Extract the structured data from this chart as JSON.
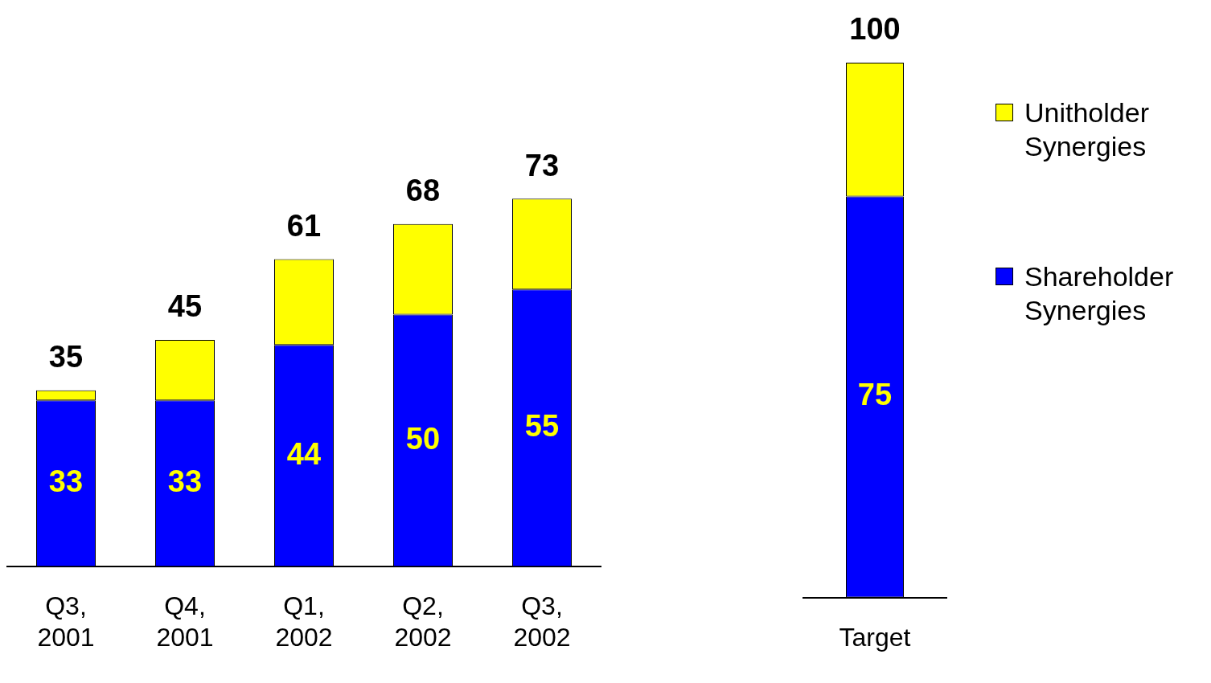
{
  "chart_data": [
    {
      "type": "bar",
      "stacked": true,
      "categories": [
        "Q3, 2001",
        "Q4, 2001",
        "Q1, 2002",
        "Q2, 2002",
        "Q3, 2002"
      ],
      "tick_labels": "x",
      "legend": false,
      "totals": [
        "35",
        "45",
        "61",
        "68",
        "73"
      ],
      "series": [
        {
          "color": "#0000ff",
          "values": [
            33,
            33,
            44,
            50,
            55
          ],
          "value_labels": [
            "33",
            "33",
            "44",
            "50",
            "55"
          ]
        },
        {
          "color": "#ffff00",
          "values": [
            2,
            12,
            17,
            18,
            18
          ]
        }
      ]
    },
    {
      "type": "bar",
      "stacked": true,
      "categories": [
        "Target"
      ],
      "tick_labels": "x",
      "legend": "right",
      "totals": [
        "100"
      ],
      "series": [
        {
          "name": "Shareholder Synergies",
          "color": "#0000ff",
          "values": [
            75
          ],
          "value_labels": [
            "75"
          ]
        },
        {
          "name": "Unitholder Synergies",
          "color": "#ffff00",
          "values": [
            25
          ]
        }
      ]
    }
  ]
}
